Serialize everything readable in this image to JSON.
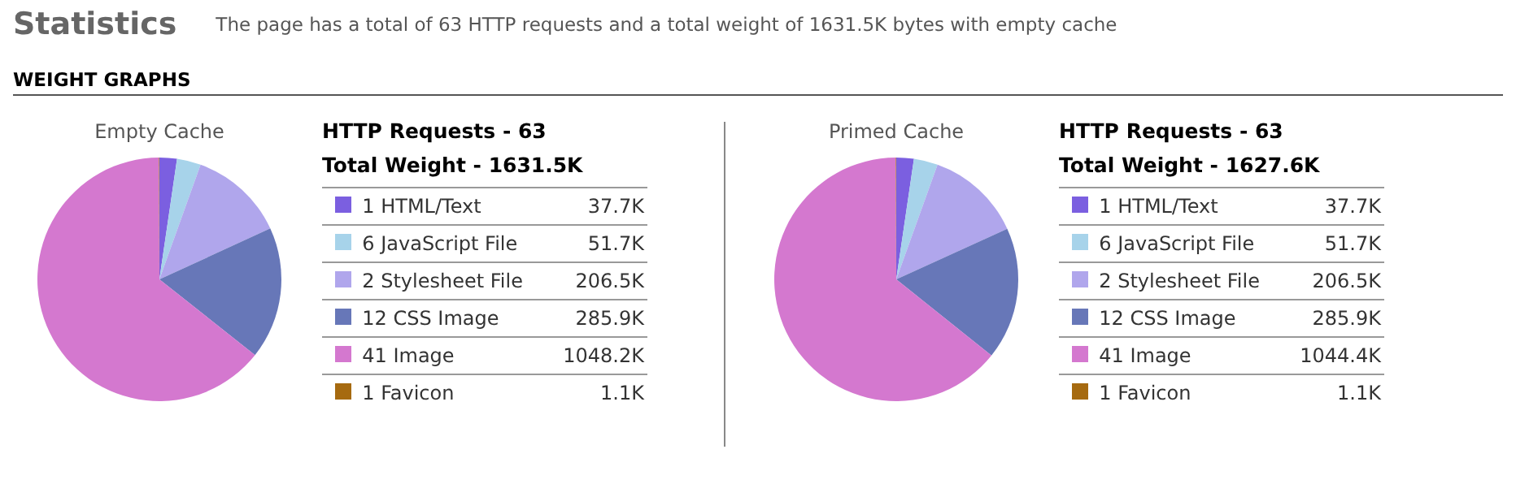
{
  "chart_data": [
    {
      "type": "other",
      "title": "Statistics",
      "subtitle": "The page has a total of 63 HTTP requests and a total weight of 1631.5K bytes with empty cache",
      "annotations": [
        "WEIGHT GRAPHS"
      ]
    },
    {
      "type": "pie",
      "title": "Empty Cache",
      "annotations": [
        "HTTP Requests - 63",
        "Total Weight - 1631.5K"
      ],
      "legend": "right",
      "categories": [
        "1 HTML/Text",
        "6 JavaScript File",
        "2 Stylesheet File",
        "12 CSS Image",
        "41 Image",
        "1 Favicon"
      ],
      "values": [
        37.7,
        51.7,
        206.5,
        285.9,
        1048.2,
        1.1
      ],
      "value_labels": [
        "37.7K",
        "51.7K",
        "206.5K",
        "285.9K",
        "1048.2K",
        "1.1K"
      ],
      "colors": [
        "#7b5fe0",
        "#a7d3ea",
        "#b0a6ec",
        "#6777b8",
        "#d478cf",
        "#a66a10"
      ]
    },
    {
      "type": "pie",
      "title": "Primed Cache",
      "annotations": [
        "HTTP Requests - 63",
        "Total Weight - 1627.6K"
      ],
      "legend": "right",
      "categories": [
        "1 HTML/Text",
        "6 JavaScript File",
        "2 Stylesheet File",
        "12 CSS Image",
        "41 Image",
        "1 Favicon"
      ],
      "values": [
        37.7,
        51.7,
        206.5,
        285.9,
        1044.4,
        1.1
      ],
      "value_labels": [
        "37.7K",
        "51.7K",
        "206.5K",
        "285.9K",
        "1044.4K",
        "1.1K"
      ],
      "colors": [
        "#7b5fe0",
        "#a7d3ea",
        "#b0a6ec",
        "#6777b8",
        "#d478cf",
        "#a66a10"
      ]
    }
  ]
}
